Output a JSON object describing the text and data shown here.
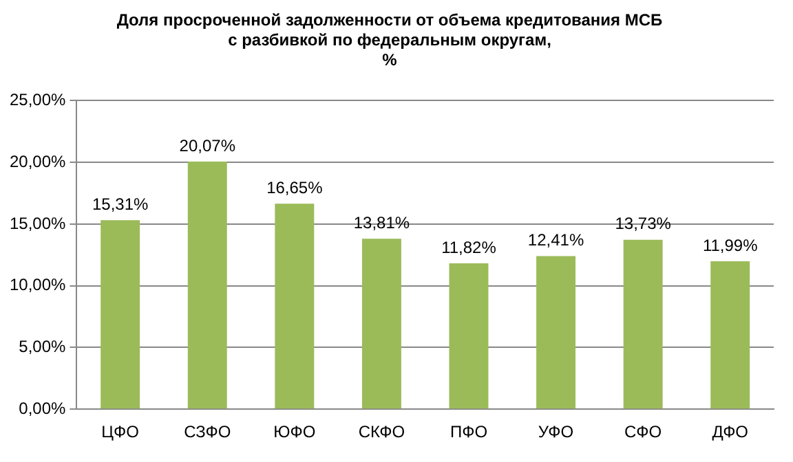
{
  "chart_data": {
    "type": "bar",
    "title": "Доля просроченной задолженности от объема кредитования МСБ\nс разбивкой по федеральным округам,\n%",
    "categories": [
      "ЦФО",
      "СЗФО",
      "ЮФО",
      "СКФО",
      "ПФО",
      "УФО",
      "СФО",
      "ДФО"
    ],
    "values": [
      15.31,
      20.07,
      16.65,
      13.81,
      11.82,
      12.41,
      13.73,
      11.99
    ],
    "value_labels": [
      "15,31%",
      "20,07%",
      "16,65%",
      "13,81%",
      "11,82%",
      "12,41%",
      "13,73%",
      "11,99%"
    ],
    "color": "#9bbb59",
    "ylim": [
      0,
      25
    ],
    "yticks": [
      {
        "value": 0,
        "label": "0,00%"
      },
      {
        "value": 5,
        "label": "5,00%"
      },
      {
        "value": 10,
        "label": "10,00%"
      },
      {
        "value": 15,
        "label": "15,00%"
      },
      {
        "value": 20,
        "label": "20,00%"
      },
      {
        "value": 25,
        "label": "25,00%"
      }
    ],
    "grid": "y",
    "legend": false
  }
}
